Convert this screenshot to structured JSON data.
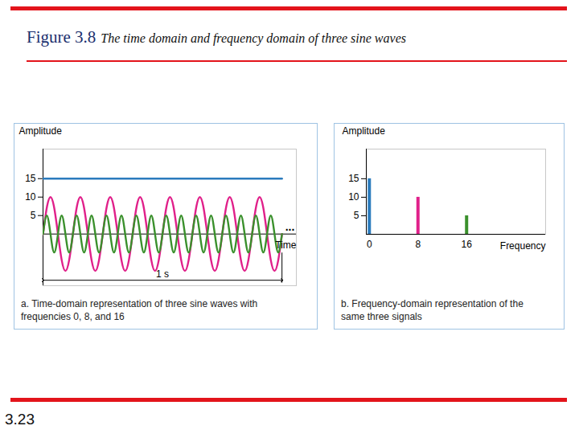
{
  "header": {
    "figure": "Figure 3.8",
    "title": "The time domain and frequency domain of three sine waves"
  },
  "footer": {
    "page": "3.23"
  },
  "chart_data": [
    {
      "type": "line",
      "caption": "a. Time-domain representation of three sine waves with frequencies 0, 8, and 16",
      "xlabel": "Time",
      "ylabel": "Amplitude",
      "x": [
        0,
        0.015625,
        0.03125,
        0.046875,
        0.0625,
        0.078125,
        0.09375,
        0.109375,
        0.125,
        0.140625,
        0.15625,
        0.171875,
        0.1875,
        0.203125,
        0.21875,
        0.234375,
        0.25,
        0.265625,
        0.28125,
        0.296875,
        0.3125,
        0.328125,
        0.34375,
        0.359375,
        0.375,
        0.390625,
        0.40625,
        0.421875,
        0.4375,
        0.453125,
        0.46875,
        0.484375,
        0.5,
        0.515625,
        0.53125,
        0.546875,
        0.5625,
        0.578125,
        0.59375,
        0.609375,
        0.625,
        0.640625,
        0.65625,
        0.671875,
        0.6875,
        0.703125,
        0.71875,
        0.734375,
        0.75,
        0.765625,
        0.78125,
        0.796875,
        0.8125,
        0.828125,
        0.84375,
        0.859375,
        0.875,
        0.890625,
        0.90625,
        0.921875,
        0.9375,
        0.953125,
        0.96875,
        0.984375,
        1
      ],
      "series": [
        {
          "color": "#2b7bbd",
          "values": [
            15,
            15,
            15,
            15,
            15,
            15,
            15,
            15,
            15,
            15,
            15,
            15,
            15,
            15,
            15,
            15,
            15,
            15,
            15,
            15,
            15,
            15,
            15,
            15,
            15,
            15,
            15,
            15,
            15,
            15,
            15,
            15,
            15,
            15,
            15,
            15,
            15,
            15,
            15,
            15,
            15,
            15,
            15,
            15,
            15,
            15,
            15,
            15,
            15,
            15,
            15,
            15,
            15,
            15,
            15,
            15,
            15,
            15,
            15,
            15,
            15,
            15,
            15,
            15,
            15
          ]
        },
        {
          "color": "#e0208a",
          "values": [
            0,
            7.07,
            10,
            7.07,
            0,
            -7.07,
            -10,
            -7.07,
            0,
            7.07,
            10,
            7.07,
            0,
            -7.07,
            -10,
            -7.07,
            0,
            7.07,
            10,
            7.07,
            0,
            -7.07,
            -10,
            -7.07,
            0,
            7.07,
            10,
            7.07,
            0,
            -7.07,
            -10,
            -7.07,
            0,
            7.07,
            10,
            7.07,
            0,
            -7.07,
            -10,
            -7.07,
            0,
            7.07,
            10,
            7.07,
            0,
            -7.07,
            -10,
            -7.07,
            0,
            7.07,
            10,
            7.07,
            0,
            -7.07,
            -10,
            -7.07,
            0,
            7.07,
            10,
            7.07,
            0,
            -7.07,
            -10,
            -7.07,
            0
          ]
        },
        {
          "color": "#3a902c",
          "values": [
            0,
            5,
            0,
            -5,
            0,
            5,
            0,
            -5,
            0,
            5,
            0,
            -5,
            0,
            5,
            0,
            -5,
            0,
            5,
            0,
            -5,
            0,
            5,
            0,
            -5,
            0,
            5,
            0,
            -5,
            0,
            5,
            0,
            -5,
            0,
            5,
            0,
            -5,
            0,
            5,
            0,
            -5,
            0,
            5,
            0,
            -5,
            0,
            5,
            0,
            -5,
            0,
            5,
            0,
            -5,
            0,
            5,
            0,
            -5,
            0,
            5,
            0,
            -5,
            0,
            5,
            0,
            -5,
            0
          ]
        }
      ],
      "xlim": [
        0,
        1.06
      ],
      "ylim": [
        -14,
        23
      ],
      "yticks": [
        5,
        10,
        15
      ],
      "tick_labels": "y",
      "annotations": [
        {
          "text": "1 s",
          "x": [
            0,
            1
          ]
        },
        {
          "text": "...",
          "x": 1
        }
      ]
    },
    {
      "type": "bar",
      "caption": "b. Frequency-domain representation of the same three signals",
      "xlabel": "Frequency",
      "ylabel": "Amplitude",
      "x": [
        0,
        8,
        16
      ],
      "values": [
        15,
        10,
        5
      ],
      "colors": [
        "#2b7bbd",
        "#e0208a",
        "#3a902c"
      ],
      "xlim": [
        -0.5,
        29
      ],
      "xticks": [
        0,
        8,
        16
      ],
      "ylim": [
        0,
        23
      ],
      "yticks": [
        5,
        10,
        15
      ]
    }
  ]
}
